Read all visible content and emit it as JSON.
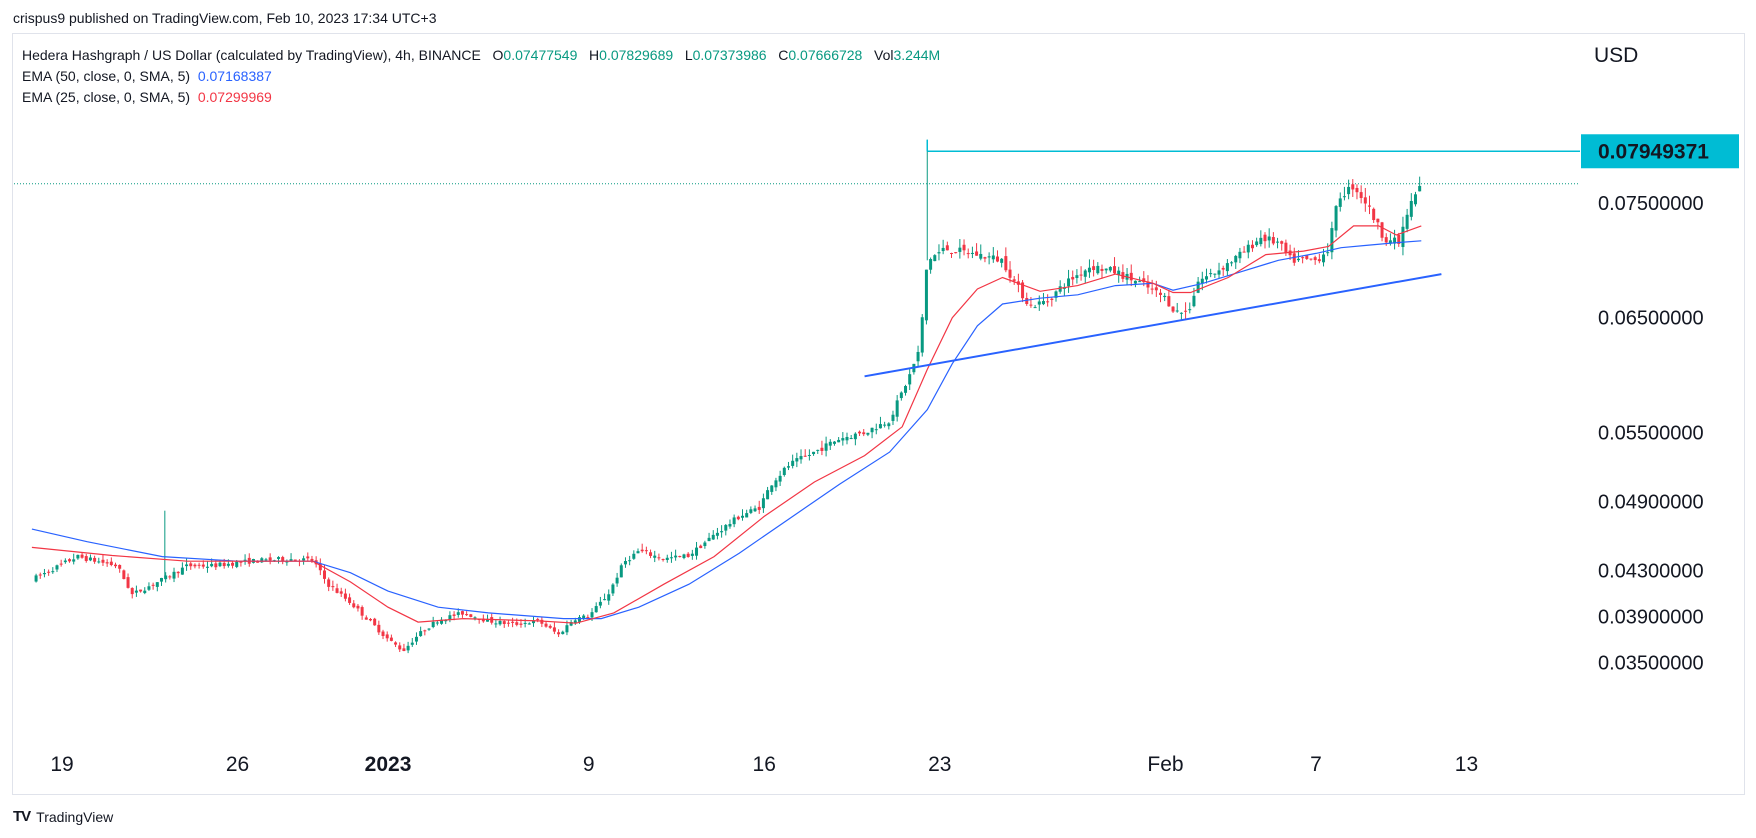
{
  "header": {
    "published": "crispus9 published on TradingView.com, Feb 10, 2023 17:34 UTC+3"
  },
  "legend": {
    "symbol": "Hedera Hashgraph / US Dollar (calculated by TradingView), 4h, BINANCE",
    "open_label": "O",
    "open": "0.07477549",
    "high_label": "H",
    "high": "0.07829689",
    "low_label": "L",
    "low": "0.07373986",
    "close_label": "C",
    "close": "0.07666728",
    "vol_label": "Vol",
    "vol": "3.244M",
    "ema50_label": "EMA (50, close, 0, SMA, 5)",
    "ema50_value": "0.07168387",
    "ema25_label": "EMA (25, close, 0, SMA, 5)",
    "ema25_value": "0.07299969"
  },
  "footer": {
    "brand": "TradingView"
  },
  "colors": {
    "up": "#089981",
    "down": "#f23645",
    "ema50": "#2962ff",
    "ema25": "#f23645",
    "hline": "#00bcd4",
    "trend": "#2962ff",
    "badge": "#00bcd4"
  },
  "chart_data": {
    "type": "candlestick",
    "currency": "USD",
    "y_ticks": [
      "0.07500000",
      "0.06500000",
      "0.05500000",
      "0.04900000",
      "0.04300000",
      "0.03900000",
      "0.03500000"
    ],
    "y_tick_values": [
      0.075,
      0.065,
      0.055,
      0.049,
      0.043,
      0.039,
      0.035
    ],
    "ylim": [
      0.0325,
      0.083
    ],
    "x_ticks": [
      "19",
      "26",
      "2023",
      "9",
      "16",
      "23",
      "Feb",
      "7",
      "13"
    ],
    "x_tick_days": [
      0,
      7,
      13,
      21,
      28,
      35,
      44,
      50,
      56
    ],
    "x_start": "2022-12-19",
    "price_badge": "0.07949371",
    "resistance_level": 0.07949371,
    "current_price": 0.07666728,
    "trend_line": {
      "from": [
        "2023-01-20",
        0.0599
      ],
      "to": [
        "2023-02-12",
        0.0688
      ]
    },
    "close_path": [
      [
        -1.2,
        0.0422
      ],
      [
        0.6,
        0.0442
      ],
      [
        2.2,
        0.0434
      ],
      [
        2.8,
        0.0409
      ],
      [
        4.0,
        0.0422
      ],
      [
        5.0,
        0.0434
      ],
      [
        6.0,
        0.0434
      ],
      [
        7.5,
        0.0438
      ],
      [
        9.0,
        0.044
      ],
      [
        10.0,
        0.0439
      ],
      [
        10.6,
        0.0418
      ],
      [
        11.5,
        0.0402
      ],
      [
        12.3,
        0.0385
      ],
      [
        13.0,
        0.037
      ],
      [
        13.6,
        0.036
      ],
      [
        14.2,
        0.0374
      ],
      [
        15.0,
        0.0387
      ],
      [
        16.0,
        0.0393
      ],
      [
        17.0,
        0.0386
      ],
      [
        18.0,
        0.0383
      ],
      [
        19.0,
        0.0386
      ],
      [
        19.8,
        0.0374
      ],
      [
        20.4,
        0.0388
      ],
      [
        21.0,
        0.039
      ],
      [
        21.8,
        0.041
      ],
      [
        22.4,
        0.0437
      ],
      [
        23.0,
        0.0447
      ],
      [
        24.0,
        0.044
      ],
      [
        25.0,
        0.0443
      ],
      [
        26.0,
        0.0461
      ],
      [
        27.0,
        0.0477
      ],
      [
        27.8,
        0.0485
      ],
      [
        28.3,
        0.0506
      ],
      [
        29.0,
        0.0522
      ],
      [
        30.0,
        0.0533
      ],
      [
        31.0,
        0.0545
      ],
      [
        32.0,
        0.055
      ],
      [
        33.0,
        0.0561
      ],
      [
        33.8,
        0.06
      ],
      [
        34.2,
        0.0623
      ],
      [
        34.5,
        0.07
      ],
      [
        35.2,
        0.071
      ],
      [
        36.5,
        0.0705
      ],
      [
        37.5,
        0.07
      ],
      [
        38.0,
        0.068
      ],
      [
        38.6,
        0.066
      ],
      [
        39.3,
        0.0665
      ],
      [
        40.0,
        0.068
      ],
      [
        41.0,
        0.0695
      ],
      [
        42.0,
        0.069
      ],
      [
        43.0,
        0.068
      ],
      [
        44.0,
        0.0667
      ],
      [
        44.4,
        0.0655
      ],
      [
        44.9,
        0.0655
      ],
      [
        45.3,
        0.0682
      ],
      [
        46.0,
        0.069
      ],
      [
        47.0,
        0.0705
      ],
      [
        47.8,
        0.072
      ],
      [
        48.5,
        0.0715
      ],
      [
        49.0,
        0.07
      ],
      [
        50.0,
        0.07
      ],
      [
        50.5,
        0.071
      ],
      [
        50.9,
        0.0755
      ],
      [
        51.5,
        0.0765
      ],
      [
        52.0,
        0.075
      ],
      [
        52.7,
        0.072
      ],
      [
        53.3,
        0.0715
      ],
      [
        53.7,
        0.0745
      ],
      [
        54.2,
        0.0767
      ]
    ],
    "ema25_path": [
      [
        -1.2,
        0.045
      ],
      [
        2.0,
        0.0443
      ],
      [
        5.0,
        0.0438
      ],
      [
        8.0,
        0.0438
      ],
      [
        10.0,
        0.0438
      ],
      [
        11.5,
        0.042
      ],
      [
        13.0,
        0.0398
      ],
      [
        14.2,
        0.0385
      ],
      [
        16.0,
        0.0388
      ],
      [
        19.0,
        0.0386
      ],
      [
        20.5,
        0.0384
      ],
      [
        22.0,
        0.0393
      ],
      [
        24.0,
        0.0418
      ],
      [
        26.0,
        0.0442
      ],
      [
        28.0,
        0.0477
      ],
      [
        30.0,
        0.0507
      ],
      [
        32.0,
        0.053
      ],
      [
        33.5,
        0.0555
      ],
      [
        34.5,
        0.0605
      ],
      [
        35.5,
        0.065
      ],
      [
        36.5,
        0.0675
      ],
      [
        37.5,
        0.0685
      ],
      [
        39.0,
        0.0673
      ],
      [
        40.5,
        0.0678
      ],
      [
        42.0,
        0.0688
      ],
      [
        43.5,
        0.068
      ],
      [
        44.3,
        0.0672
      ],
      [
        45.0,
        0.0672
      ],
      [
        46.5,
        0.0685
      ],
      [
        48.0,
        0.0705
      ],
      [
        49.5,
        0.0708
      ],
      [
        50.5,
        0.0712
      ],
      [
        51.5,
        0.073
      ],
      [
        52.5,
        0.073
      ],
      [
        53.2,
        0.0722
      ],
      [
        54.2,
        0.073
      ]
    ],
    "ema50_path": [
      [
        -1.2,
        0.0466
      ],
      [
        1.0,
        0.0455
      ],
      [
        4.0,
        0.0442
      ],
      [
        7.0,
        0.0438
      ],
      [
        10.0,
        0.0438
      ],
      [
        11.5,
        0.0428
      ],
      [
        13.0,
        0.0412
      ],
      [
        15.0,
        0.0398
      ],
      [
        17.0,
        0.0393
      ],
      [
        20.0,
        0.0388
      ],
      [
        21.5,
        0.0388
      ],
      [
        23.0,
        0.0398
      ],
      [
        25.0,
        0.0418
      ],
      [
        27.0,
        0.0445
      ],
      [
        29.0,
        0.0475
      ],
      [
        31.0,
        0.0505
      ],
      [
        33.0,
        0.0533
      ],
      [
        34.5,
        0.057
      ],
      [
        35.5,
        0.061
      ],
      [
        36.5,
        0.0643
      ],
      [
        37.5,
        0.0662
      ],
      [
        39.0,
        0.0667
      ],
      [
        40.5,
        0.067
      ],
      [
        42.0,
        0.0678
      ],
      [
        43.5,
        0.068
      ],
      [
        44.3,
        0.0674
      ],
      [
        45.5,
        0.068
      ],
      [
        47.0,
        0.069
      ],
      [
        48.5,
        0.07
      ],
      [
        50.0,
        0.0706
      ],
      [
        51.0,
        0.0711
      ],
      [
        52.0,
        0.0713
      ],
      [
        53.0,
        0.0715
      ],
      [
        54.2,
        0.0717
      ]
    ],
    "spikes": [
      {
        "day": 4.1,
        "high": 0.0482
      },
      {
        "day": 34.5,
        "high": 0.0805
      }
    ]
  }
}
